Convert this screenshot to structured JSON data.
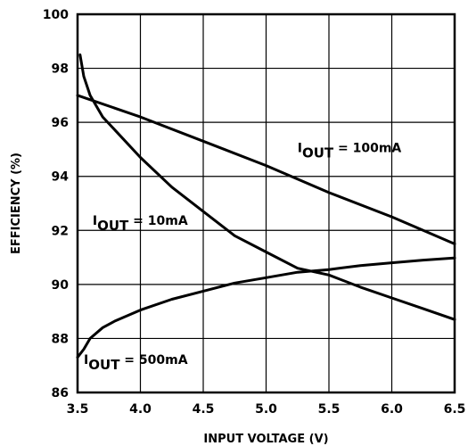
{
  "chart_data": {
    "type": "line",
    "xlabel": "INPUT VOLTAGE (V)",
    "ylabel": "EFFICIENCY (%)",
    "xlim": [
      3.5,
      6.5
    ],
    "ylim": [
      86,
      100
    ],
    "xticks": [
      "3.5",
      "4.0",
      "4.5",
      "5.0",
      "5.5",
      "6.0",
      "6.5"
    ],
    "yticks": [
      "86",
      "88",
      "90",
      "92",
      "94",
      "96",
      "98",
      "100"
    ],
    "grid": true,
    "series": [
      {
        "name": "I_OUT = 10mA",
        "x": [
          3.52,
          3.55,
          3.6,
          3.7,
          3.8,
          4.0,
          4.25,
          4.5,
          4.75,
          5.0,
          5.25,
          5.5,
          5.75,
          6.0,
          6.25,
          6.5
        ],
        "y": [
          98.5,
          97.7,
          97.0,
          96.2,
          95.7,
          94.7,
          93.6,
          92.7,
          91.8,
          91.2,
          90.6,
          90.35,
          89.9,
          89.5,
          89.1,
          88.7
        ]
      },
      {
        "name": "I_OUT = 100mA",
        "x": [
          3.5,
          4.0,
          4.5,
          5.0,
          5.5,
          6.0,
          6.5
        ],
        "y": [
          97.0,
          96.2,
          95.3,
          94.4,
          93.4,
          92.5,
          91.5
        ]
      },
      {
        "name": "I_OUT = 500mA",
        "x": [
          3.5,
          3.55,
          3.6,
          3.7,
          3.8,
          4.0,
          4.25,
          4.5,
          4.75,
          5.0,
          5.25,
          5.5,
          5.75,
          6.0,
          6.25,
          6.5
        ],
        "y": [
          87.3,
          87.6,
          88.0,
          88.4,
          88.65,
          89.05,
          89.45,
          89.75,
          90.05,
          90.25,
          90.45,
          90.55,
          90.7,
          90.8,
          90.9,
          90.98
        ]
      }
    ],
    "annotations": [
      {
        "label": "I",
        "sub": "OUT",
        "rest": " = 100mA",
        "x": 5.25,
        "y": 94.9
      },
      {
        "label": "I",
        "sub": "OUT",
        "rest": " = 10mA",
        "x": 3.62,
        "y": 92.2
      },
      {
        "label": "I",
        "sub": "OUT",
        "rest": " = 500mA",
        "x": 3.55,
        "y": 87.05
      }
    ]
  }
}
